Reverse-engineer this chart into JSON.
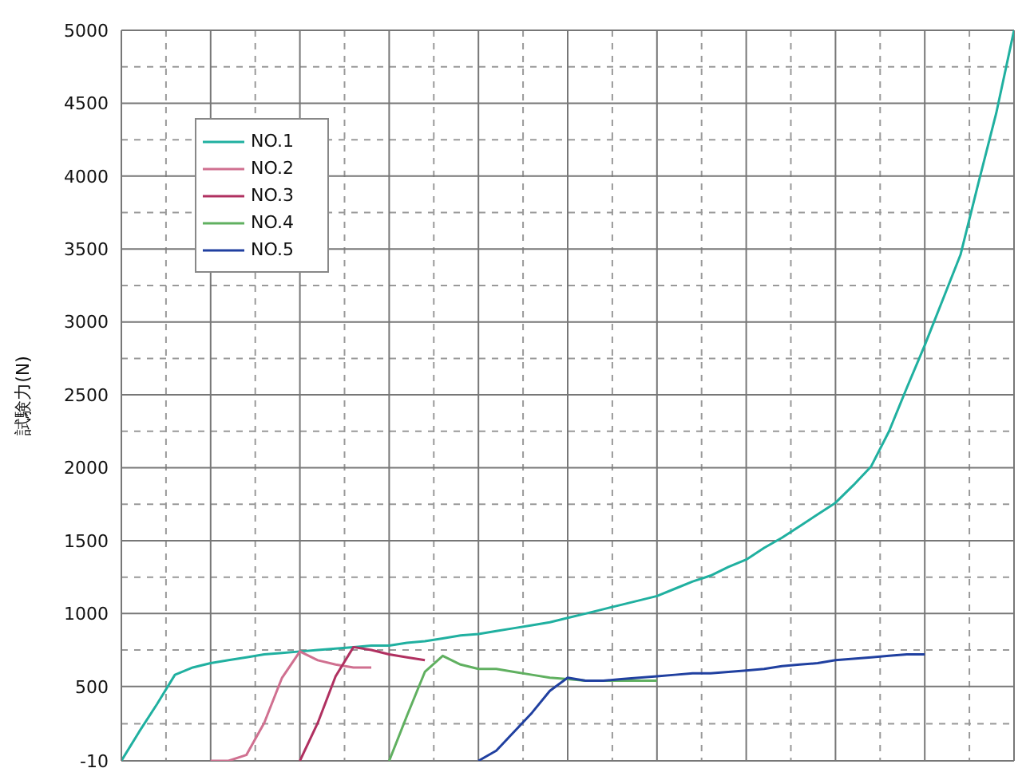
{
  "chart_data": {
    "type": "line",
    "ylabel": "試験力(N)",
    "categories": [
      null,
      null,
      null,
      null,
      null,
      null,
      null,
      null,
      null,
      null,
      null,
      null,
      null,
      null,
      null,
      null,
      null,
      null,
      null,
      null,
      null,
      null,
      null,
      null,
      null,
      null,
      null,
      null,
      null,
      null,
      null,
      null,
      null,
      null,
      null,
      null,
      null,
      null,
      null,
      null,
      null,
      null,
      null,
      null,
      null,
      null,
      null,
      null,
      null,
      null,
      null
    ],
    "series": [
      {
        "name": "NO.1",
        "color": "#20b0a0",
        "values": [
          -10,
          190,
          380,
          580,
          630,
          660,
          680,
          700,
          720,
          730,
          740,
          750,
          760,
          770,
          780,
          780,
          800,
          810,
          830,
          850,
          860,
          880,
          900,
          920,
          940,
          970,
          1000,
          1030,
          1060,
          1090,
          1120,
          1170,
          1220,
          1260,
          1320,
          1370,
          1450,
          1520,
          1600,
          1680,
          1760,
          1880,
          2010,
          2250,
          2550,
          2840,
          3150,
          3460,
          3950,
          4430,
          5000
        ]
      },
      {
        "name": "NO.2",
        "color": "#d07090",
        "values": [
          null,
          null,
          null,
          null,
          null,
          -10,
          -10,
          30,
          250,
          560,
          740,
          680,
          650,
          630,
          630,
          null,
          null,
          null,
          null,
          null,
          null,
          null,
          null,
          null,
          null,
          null,
          null,
          null,
          null,
          null,
          null,
          null,
          null,
          null,
          null,
          null,
          null,
          null,
          null,
          null,
          null,
          null,
          null,
          null,
          null,
          null,
          null,
          null,
          null,
          null,
          null
        ]
      },
      {
        "name": "NO.3",
        "color": "#b03060",
        "values": [
          null,
          null,
          null,
          null,
          null,
          null,
          null,
          null,
          null,
          null,
          -10,
          250,
          570,
          770,
          750,
          720,
          700,
          680,
          null,
          null,
          null,
          null,
          null,
          null,
          null,
          null,
          null,
          null,
          null,
          null,
          null,
          null,
          null,
          null,
          null,
          null,
          null,
          null,
          null,
          null,
          null,
          null,
          null,
          null,
          null,
          null,
          null,
          null,
          null,
          null,
          null
        ]
      },
      {
        "name": "NO.4",
        "color": "#60b060",
        "values": [
          null,
          null,
          null,
          null,
          null,
          null,
          null,
          null,
          null,
          null,
          null,
          null,
          null,
          null,
          null,
          -10,
          300,
          600,
          710,
          650,
          620,
          620,
          600,
          580,
          560,
          550,
          540,
          540,
          540,
          540,
          540,
          null,
          null,
          null,
          null,
          null,
          null,
          null,
          null,
          null,
          null,
          null,
          null,
          null,
          null,
          null,
          null,
          null,
          null,
          null,
          null
        ]
      },
      {
        "name": "NO.5",
        "color": "#2040a0",
        "values": [
          null,
          null,
          null,
          null,
          null,
          null,
          null,
          null,
          null,
          null,
          null,
          null,
          null,
          null,
          null,
          null,
          null,
          null,
          null,
          null,
          -10,
          60,
          190,
          320,
          470,
          560,
          540,
          540,
          550,
          560,
          570,
          580,
          590,
          590,
          600,
          610,
          620,
          640,
          650,
          660,
          680,
          690,
          700,
          710,
          720,
          720,
          null,
          null,
          null,
          null,
          null
        ]
      }
    ],
    "ylim": [
      -10,
      5000
    ],
    "yticks": [
      -10,
      500,
      1000,
      1500,
      2000,
      2500,
      3000,
      3500,
      4000,
      4500,
      5000
    ],
    "tick_labels": "y",
    "grid": true,
    "legend": "top left",
    "marker": "none",
    "line_style": "solid"
  }
}
